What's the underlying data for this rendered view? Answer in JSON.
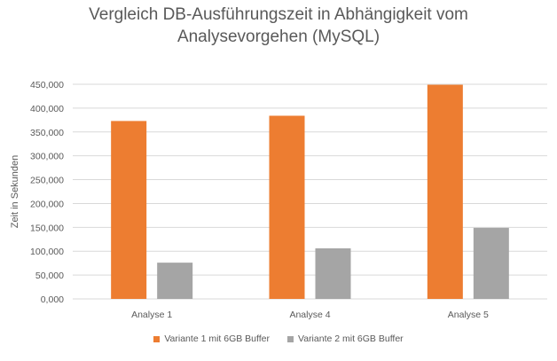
{
  "chart_data": {
    "type": "bar",
    "title_lines": [
      "Vergleich DB-Ausführungszeit in Abhängigkeit vom",
      "Analysevorgehen (MySQL)"
    ],
    "xlabel": "",
    "ylabel": "Zeit in Sekunden",
    "categories": [
      "Analyse 1",
      "Analyse 4",
      "Analyse 5"
    ],
    "series": [
      {
        "name": "Variante 1 mit 6GB Buffer",
        "color": "#ED7D31",
        "values": [
          373,
          384,
          449
        ]
      },
      {
        "name": "Variante 2 mit 6GB Buffer",
        "color": "#A5A5A5",
        "values": [
          76,
          106,
          149
        ]
      }
    ],
    "ylim": [
      0,
      450
    ],
    "yticks": [
      0,
      50,
      100,
      150,
      200,
      250,
      300,
      350,
      400,
      450
    ],
    "ytick_labels": [
      "0,000",
      "50,000",
      "100,000",
      "150,000",
      "200,000",
      "250,000",
      "300,000",
      "350,000",
      "400,000",
      "450,000"
    ],
    "grid": true,
    "gridline_color": "#D9D9D9",
    "legend_position": "bottom"
  }
}
